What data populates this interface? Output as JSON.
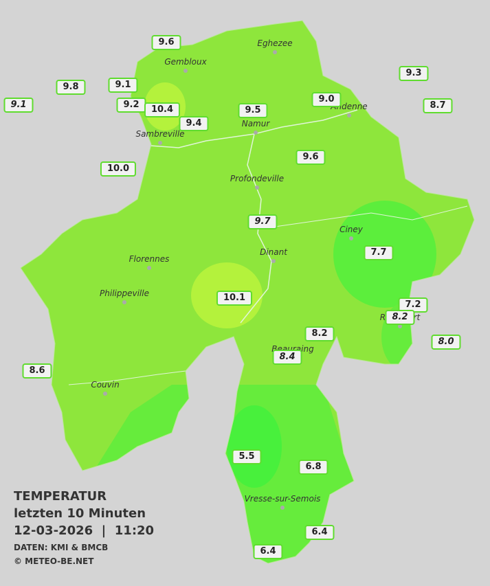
{
  "legend": {
    "title": "TEMPERATUR",
    "subtitle": "letzten 10 Minuten",
    "datetime": "12-03-2026  |  11:20",
    "source": "DATEN: KMI & BMCB",
    "copyright": "© METEO-BE.NET"
  },
  "towns": [
    "Eghezee",
    "Gembloux",
    "Andenne",
    "Namur",
    "Sambreville",
    "Profondeville",
    "Ciney",
    "Florennes",
    "Dinant",
    "Philippeville",
    "Rochefort",
    "Beauraing",
    "Couvin",
    "Vresse-sur-Semois"
  ],
  "stations": [
    {
      "label": "9.6",
      "italic": false
    },
    {
      "label": "9.8",
      "italic": false
    },
    {
      "label": "9.1",
      "italic": false
    },
    {
      "label": "9.1",
      "italic": true
    },
    {
      "label": "9.2",
      "italic": false
    },
    {
      "label": "10.4",
      "italic": false
    },
    {
      "label": "9.4",
      "italic": false
    },
    {
      "label": "9.5",
      "italic": false
    },
    {
      "label": "9.0",
      "italic": false
    },
    {
      "label": "9.3",
      "italic": false
    },
    {
      "label": "8.7",
      "italic": false
    },
    {
      "label": "10.0",
      "italic": false
    },
    {
      "label": "9.6",
      "italic": false
    },
    {
      "label": "9.7",
      "italic": true
    },
    {
      "label": "7.7",
      "italic": false
    },
    {
      "label": "10.1",
      "italic": false
    },
    {
      "label": "7.2",
      "italic": false
    },
    {
      "label": "8.2",
      "italic": true
    },
    {
      "label": "8.0",
      "italic": true
    },
    {
      "label": "8.2",
      "italic": false
    },
    {
      "label": "8.4",
      "italic": true
    },
    {
      "label": "8.6",
      "italic": false
    },
    {
      "label": "5.5",
      "italic": false
    },
    {
      "label": "6.8",
      "italic": false
    },
    {
      "label": "6.4",
      "italic": false
    },
    {
      "label": "6.4",
      "italic": false
    }
  ]
}
